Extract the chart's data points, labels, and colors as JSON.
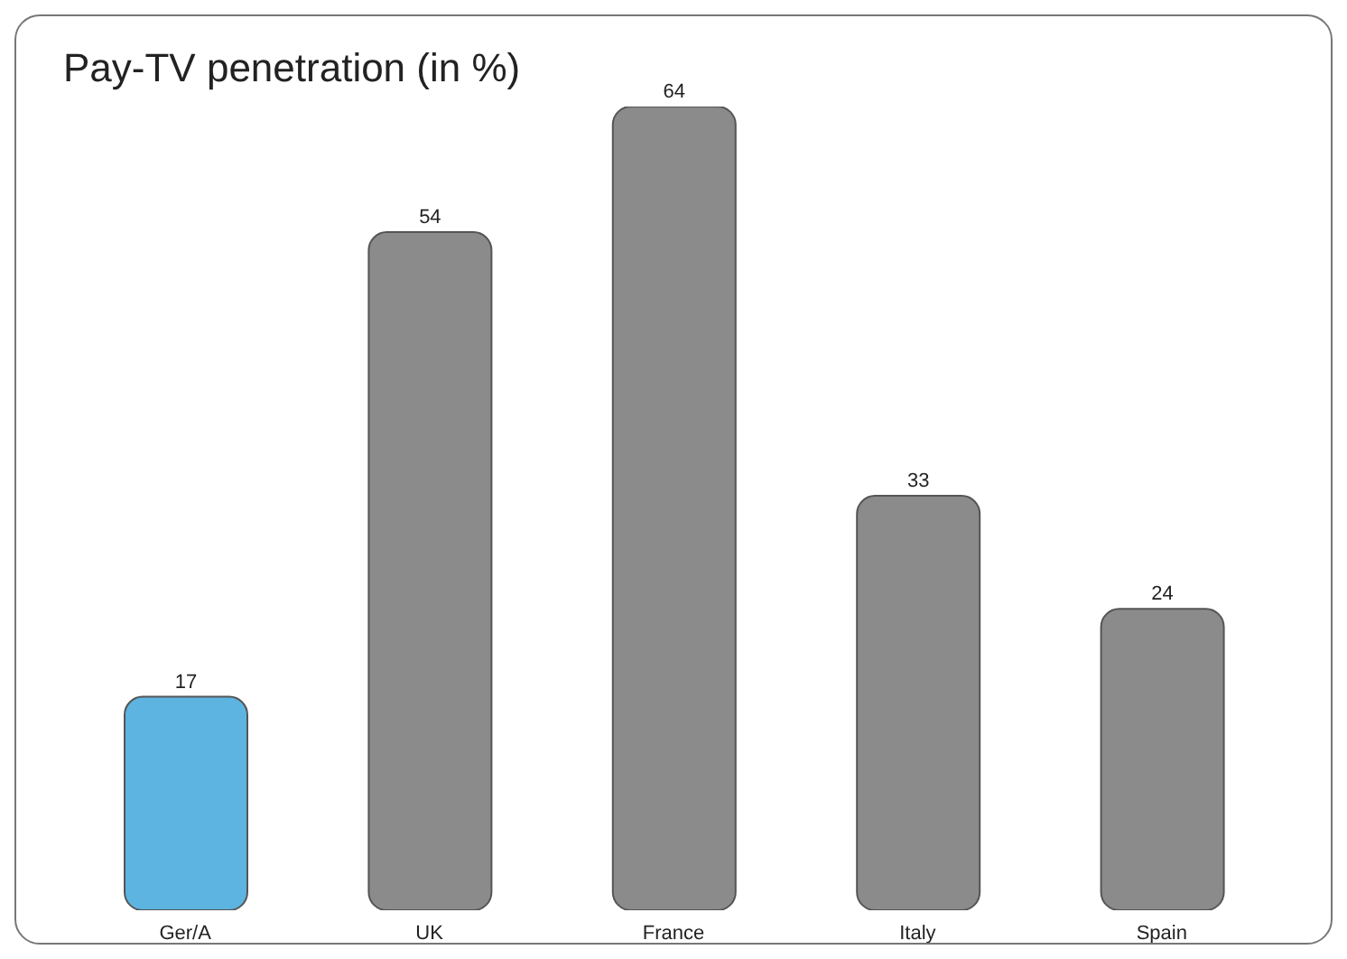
{
  "chart_data": {
    "type": "bar",
    "title": "Pay-TV penetration (in %)",
    "categories": [
      "Ger/A",
      "UK",
      "France",
      "Italy",
      "Spain"
    ],
    "values": [
      17,
      54,
      64,
      33,
      24
    ],
    "colors": [
      "#5db4e0",
      "#8c8b8b",
      "#8c8b8b",
      "#8c8b8b",
      "#8c8b8b"
    ],
    "data_labels": true,
    "grid": false,
    "legend": false
  }
}
